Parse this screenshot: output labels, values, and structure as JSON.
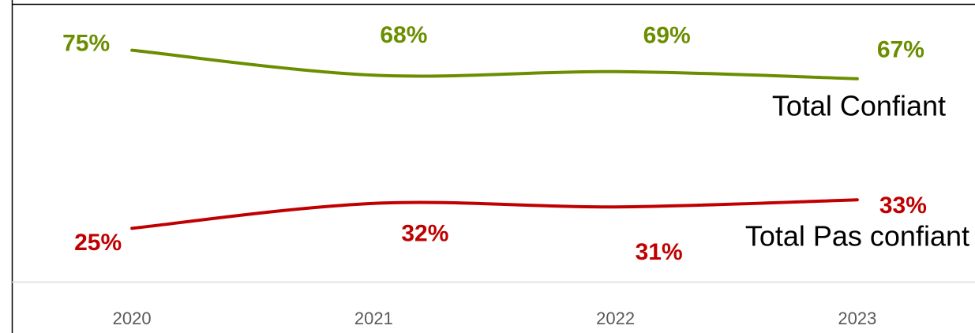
{
  "chart_data": {
    "type": "line",
    "categories": [
      "2020",
      "2021",
      "2022",
      "2023"
    ],
    "series": [
      {
        "name": "Total Confiant",
        "color": "#6b8e00",
        "values": [
          75,
          68,
          69,
          67
        ],
        "value_labels": [
          "75%",
          "68%",
          "69%",
          "67%"
        ]
      },
      {
        "name": "Total Pas confiant",
        "color": "#c00000",
        "values": [
          25,
          32,
          31,
          33
        ],
        "value_labels": [
          "25%",
          "32%",
          "31%",
          "33%"
        ]
      }
    ],
    "ylim": [
      10,
      88
    ]
  }
}
